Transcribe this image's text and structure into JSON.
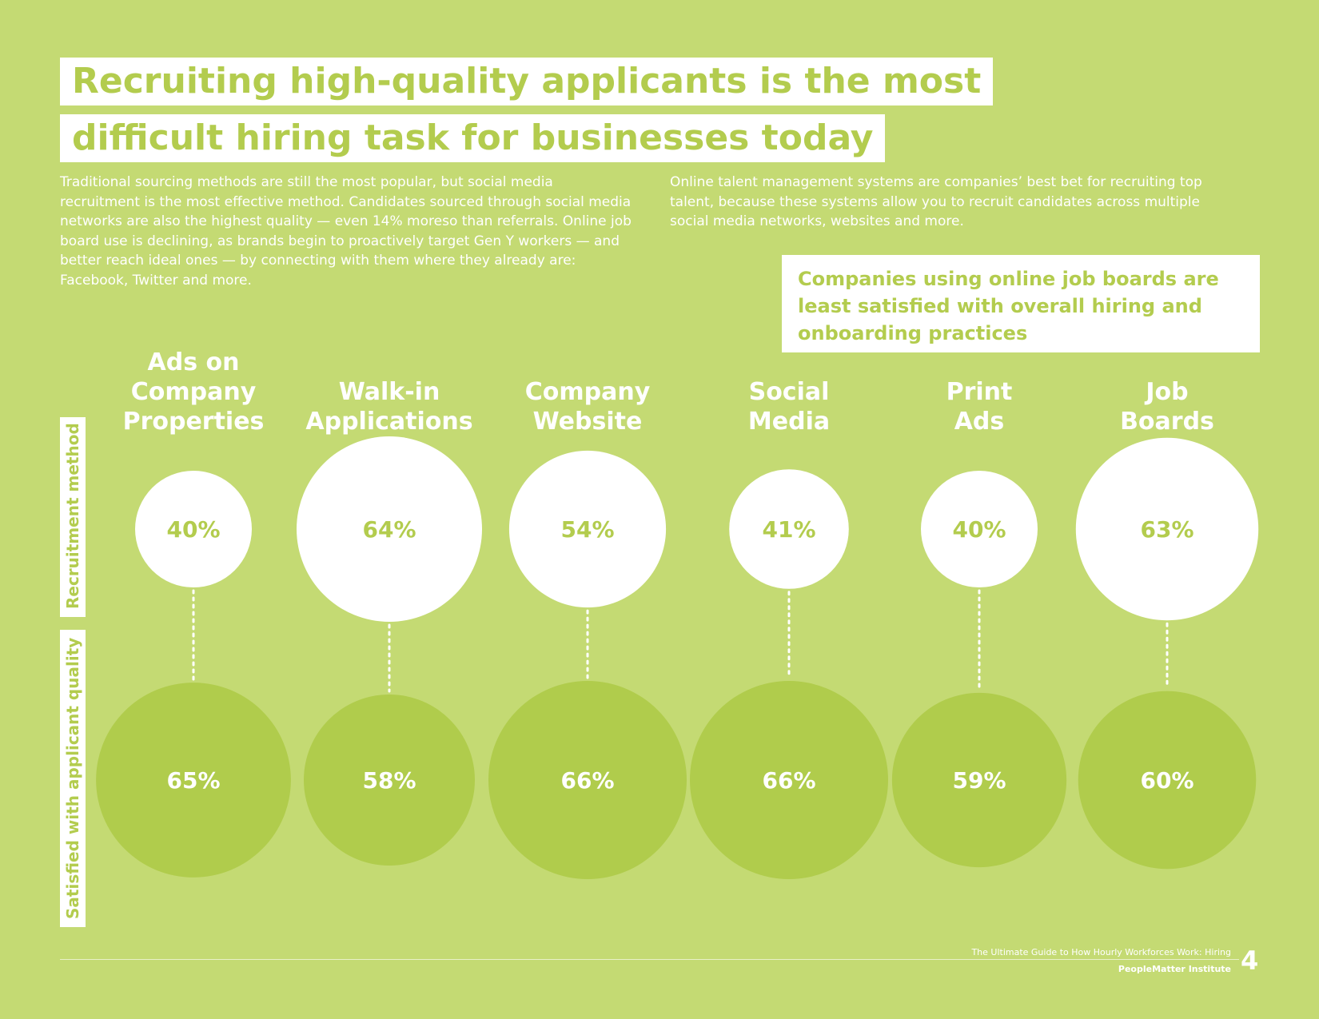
{
  "title": {
    "line1": "Recruiting high-quality applicants is the most",
    "line2": "difficult hiring task for businesses today"
  },
  "intro": {
    "left": "Traditional sourcing methods are still the most popular, but social media recruitment is the most effective method. Candidates sourced through social media networks are also the highest quality — even 14% moreso than referrals. Online job board use is declining, as brands begin to proactively target Gen Y workers — and better reach ideal ones — by connecting with them where they already are: Facebook, Twitter and more.",
    "right": "Online talent management systems are companies’ best bet for recruiting top talent, because these systems allow you to recruit candidates across multiple social media networks, websites and more."
  },
  "callout": "Companies using online job boards are least satisfied with overall hiring and onboarding practices",
  "side_labels": {
    "method": "Recruitment  method",
    "quality": "Satisfied with applicant quality"
  },
  "colors": {
    "background": "#c4da73",
    "accent_text": "#b3cc4e",
    "quality_circle": "#b0cc4c",
    "method_circle": "#ffffff"
  },
  "chart_data": {
    "type": "bubble",
    "categories": [
      "Ads on Company Properties",
      "Walk-in Applications",
      "Company Website",
      "Social Media",
      "Print Ads",
      "Job Boards"
    ],
    "category_labels": [
      [
        "Ads on",
        "Company",
        "Properties"
      ],
      [
        "Walk-in",
        "Applications"
      ],
      [
        "Company",
        "Website"
      ],
      [
        "Social",
        "Media"
      ],
      [
        "Print",
        "Ads"
      ],
      [
        "Job",
        "Boards"
      ]
    ],
    "series": [
      {
        "name": "Recruitment  method",
        "unit": "%",
        "values": [
          40,
          64,
          54,
          41,
          40,
          63
        ]
      },
      {
        "name": "Satisfied with applicant quality",
        "unit": "%",
        "values": [
          65,
          58,
          66,
          66,
          59,
          60
        ]
      }
    ]
  },
  "footer": {
    "guide_title": "The Ultimate Guide to How Hourly Workforces Work: Hiring",
    "publisher": "PeopleMatter Institute",
    "page": "4"
  }
}
